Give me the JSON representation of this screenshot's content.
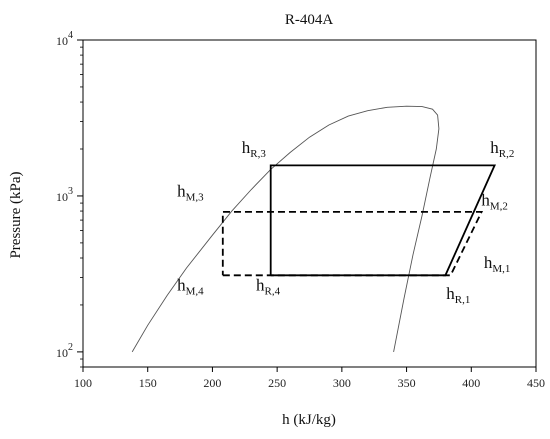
{
  "chart_data": {
    "type": "line",
    "title": "R-404A",
    "xlabel": "h (kJ/kg)",
    "ylabel": "Pressure (kPa)",
    "xscale": "linear",
    "yscale": "log",
    "xlim": [
      100,
      450
    ],
    "ylim": [
      80,
      10000
    ],
    "grid": false,
    "x_ticks": [
      "100",
      "150",
      "200",
      "250",
      "300",
      "350",
      "400",
      "450"
    ],
    "y_ticks": [
      {
        "value": 100,
        "base": "10",
        "exp": "2"
      },
      {
        "value": 1000,
        "base": "10",
        "exp": "3"
      },
      {
        "value": 10000,
        "base": "10",
        "exp": "4"
      }
    ],
    "dome": {
      "style": "thin",
      "points": [
        [
          138,
          100
        ],
        [
          150,
          148
        ],
        [
          165,
          230
        ],
        [
          180,
          345
        ],
        [
          200,
          560
        ],
        [
          215,
          800
        ],
        [
          230,
          1100
        ],
        [
          245,
          1480
        ],
        [
          260,
          1900
        ],
        [
          275,
          2380
        ],
        [
          290,
          2850
        ],
        [
          305,
          3250
        ],
        [
          320,
          3520
        ],
        [
          335,
          3700
        ],
        [
          350,
          3760
        ],
        [
          362,
          3740
        ],
        [
          370,
          3600
        ],
        [
          374,
          3300
        ],
        [
          375,
          2700
        ],
        [
          373,
          2000
        ],
        [
          368,
          1300
        ],
        [
          362,
          750
        ],
        [
          355,
          420
        ],
        [
          348,
          220
        ],
        [
          340,
          100
        ]
      ]
    },
    "series": [
      {
        "style": "solid",
        "points": [
          [
            245,
            310
          ],
          [
            380,
            310
          ],
          [
            418,
            1570
          ],
          [
            245,
            1570
          ],
          [
            245,
            310
          ]
        ]
      },
      {
        "style": "dashed",
        "points": [
          [
            208,
            310
          ],
          [
            384,
            310
          ],
          [
            408,
            790
          ],
          [
            208,
            790
          ],
          [
            208,
            310
          ]
        ]
      }
    ],
    "annotations": [
      {
        "main": "h",
        "sub": "R,3",
        "x": 232,
        "y": 1880
      },
      {
        "main": "h",
        "sub": "R,2",
        "x": 424,
        "y": 1880
      },
      {
        "main": "h",
        "sub": "M,3",
        "x": 183,
        "y": 990
      },
      {
        "main": "h",
        "sub": "M,2",
        "x": 418,
        "y": 870
      },
      {
        "main": "h",
        "sub": "M,4",
        "x": 183,
        "y": 248
      },
      {
        "main": "h",
        "sub": "R,4",
        "x": 243,
        "y": 248
      },
      {
        "main": "h",
        "sub": "M,1",
        "x": 420,
        "y": 345
      },
      {
        "main": "h",
        "sub": "R,1",
        "x": 390,
        "y": 218
      }
    ]
  }
}
